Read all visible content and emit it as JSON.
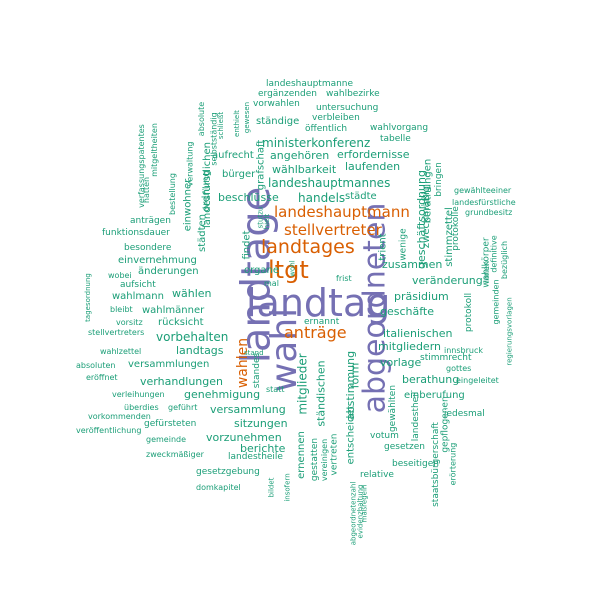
{
  "colors": {
    "teal": "#1b9e77",
    "orange": "#d95f02",
    "purple": "#7570b3"
  },
  "words": [
    {
      "text": "landtag",
      "color": "purple"
    },
    {
      "text": "landtage",
      "color": "purple"
    },
    {
      "text": "abgeordneten",
      "color": "purple"
    },
    {
      "text": "wahl",
      "color": "purple"
    },
    {
      "text": "ltgt",
      "color": "orange"
    },
    {
      "text": "landtages",
      "color": "orange"
    },
    {
      "text": "stellvertreter",
      "color": "orange"
    },
    {
      "text": "landeshauptmann",
      "color": "orange"
    },
    {
      "text": "anträge",
      "color": "orange"
    },
    {
      "text": "wahlen",
      "color": "orange"
    },
    {
      "text": "landeshauptmanne",
      "color": "teal"
    },
    {
      "text": "ergänzenden",
      "color": "teal"
    },
    {
      "text": "wahlbezirke",
      "color": "teal"
    },
    {
      "text": "vorwahlen",
      "color": "teal"
    },
    {
      "text": "untersuchung",
      "color": "teal"
    },
    {
      "text": "verbleiben",
      "color": "teal"
    },
    {
      "text": "ständige",
      "color": "teal"
    },
    {
      "text": "öffentlich",
      "color": "teal"
    },
    {
      "text": "wahlvorgang",
      "color": "teal"
    },
    {
      "text": "tabelle",
      "color": "teal"
    },
    {
      "text": "ministerkonferenz",
      "color": "teal"
    },
    {
      "text": "erfordernisse",
      "color": "teal"
    },
    {
      "text": "aufrecht",
      "color": "teal"
    },
    {
      "text": "angehören",
      "color": "teal"
    },
    {
      "text": "laufenden",
      "color": "teal"
    },
    {
      "text": "wählbarkeit",
      "color": "teal"
    },
    {
      "text": "bürger",
      "color": "teal"
    },
    {
      "text": "landeshauptmannes",
      "color": "teal"
    },
    {
      "text": "beschlüsse",
      "color": "teal"
    },
    {
      "text": "handels",
      "color": "teal"
    },
    {
      "text": "städte",
      "color": "teal"
    },
    {
      "text": "grafschaft",
      "color": "teal"
    },
    {
      "text": "geschäftsordnung",
      "color": "teal"
    },
    {
      "text": "zweckmäßig",
      "color": "teal"
    },
    {
      "text": "berathungen",
      "color": "teal"
    },
    {
      "text": "bringen",
      "color": "teal"
    },
    {
      "text": "stimmzettel",
      "color": "teal"
    },
    {
      "text": "trient",
      "color": "teal"
    },
    {
      "text": "wenige",
      "color": "teal"
    },
    {
      "text": "zusammen",
      "color": "teal"
    },
    {
      "text": "präsidium",
      "color": "teal"
    },
    {
      "text": "geschäfte",
      "color": "teal"
    },
    {
      "text": "veränderung",
      "color": "teal"
    },
    {
      "text": "italienischen",
      "color": "teal"
    },
    {
      "text": "mitgliedern",
      "color": "teal"
    },
    {
      "text": "vorlage",
      "color": "teal"
    },
    {
      "text": "stimmrecht",
      "color": "teal"
    },
    {
      "text": "berathung",
      "color": "teal"
    },
    {
      "text": "einberufung",
      "color": "teal"
    },
    {
      "text": "gewählten",
      "color": "teal"
    },
    {
      "text": "landestheil",
      "color": "teal"
    },
    {
      "text": "staatsbürgerschaft",
      "color": "teal"
    },
    {
      "text": "gepflogenen",
      "color": "teal"
    },
    {
      "text": "votum",
      "color": "teal"
    },
    {
      "text": "gesetzen",
      "color": "teal"
    },
    {
      "text": "beseitigen",
      "color": "teal"
    },
    {
      "text": "relative",
      "color": "teal"
    },
    {
      "text": "jedesmal",
      "color": "teal"
    },
    {
      "text": "erörterung",
      "color": "teal"
    },
    {
      "text": "gewählteeiner",
      "color": "teal"
    },
    {
      "text": "landesfürstliche",
      "color": "teal"
    },
    {
      "text": "grundbesitz",
      "color": "teal"
    },
    {
      "text": "protokolle",
      "color": "teal"
    },
    {
      "text": "protokoll",
      "color": "teal"
    },
    {
      "text": "wahlkörper",
      "color": "teal"
    },
    {
      "text": "innen",
      "color": "teal"
    },
    {
      "text": "bezüglich",
      "color": "teal"
    },
    {
      "text": "definitive",
      "color": "teal"
    },
    {
      "text": "gemeinden",
      "color": "teal"
    },
    {
      "text": "regierungsvorlagen",
      "color": "teal"
    },
    {
      "text": "innsbruck",
      "color": "teal"
    },
    {
      "text": "gottes",
      "color": "teal"
    },
    {
      "text": "eingeleitet",
      "color": "teal"
    },
    {
      "text": "verfassungspatentes",
      "color": "teal"
    },
    {
      "text": "mitgeltheiten",
      "color": "teal"
    },
    {
      "text": "hatten",
      "color": "teal"
    },
    {
      "text": "bestellung",
      "color": "teal"
    },
    {
      "text": "absolute",
      "color": "teal"
    },
    {
      "text": "verwaltung",
      "color": "teal"
    },
    {
      "text": "einwohner",
      "color": "teal"
    },
    {
      "text": "landesfürstlichen",
      "color": "teal"
    },
    {
      "text": "ordnung",
      "color": "teal"
    },
    {
      "text": "städten",
      "color": "teal"
    },
    {
      "text": "selbstständig",
      "color": "teal"
    },
    {
      "text": "schließt",
      "color": "teal"
    },
    {
      "text": "enthielt",
      "color": "teal"
    },
    {
      "text": "gewesen",
      "color": "teal"
    },
    {
      "text": "anträgen",
      "color": "teal"
    },
    {
      "text": "funktionsdauer",
      "color": "teal"
    },
    {
      "text": "besondere",
      "color": "teal"
    },
    {
      "text": "einvernehmung",
      "color": "teal"
    },
    {
      "text": "wobei",
      "color": "teal"
    },
    {
      "text": "änderungen",
      "color": "teal"
    },
    {
      "text": "aufsicht",
      "color": "teal"
    },
    {
      "text": "wahlmann",
      "color": "teal"
    },
    {
      "text": "wählen",
      "color": "teal"
    },
    {
      "text": "tagesordnung",
      "color": "teal"
    },
    {
      "text": "bleibt",
      "color": "teal"
    },
    {
      "text": "wahlmänner",
      "color": "teal"
    },
    {
      "text": "vorsitz",
      "color": "teal"
    },
    {
      "text": "rücksicht",
      "color": "teal"
    },
    {
      "text": "stellvertreters",
      "color": "teal"
    },
    {
      "text": "vorbehalten",
      "color": "teal"
    },
    {
      "text": "landtags",
      "color": "teal"
    },
    {
      "text": "wahlzettel",
      "color": "teal"
    },
    {
      "text": "versammlungen",
      "color": "teal"
    },
    {
      "text": "absoluten",
      "color": "teal"
    },
    {
      "text": "eröffnet",
      "color": "teal"
    },
    {
      "text": "verhandlungen",
      "color": "teal"
    },
    {
      "text": "genehmigung",
      "color": "teal"
    },
    {
      "text": "verleihungen",
      "color": "teal"
    },
    {
      "text": "versammlung",
      "color": "teal"
    },
    {
      "text": "überdies",
      "color": "teal"
    },
    {
      "text": "geführt",
      "color": "teal"
    },
    {
      "text": "vorkommenden",
      "color": "teal"
    },
    {
      "text": "gefürsteten",
      "color": "teal"
    },
    {
      "text": "sitzungen",
      "color": "teal"
    },
    {
      "text": "veröffentlichung",
      "color": "teal"
    },
    {
      "text": "gemeinde",
      "color": "teal"
    },
    {
      "text": "vorzunehmen",
      "color": "teal"
    },
    {
      "text": "zweckmäßiger",
      "color": "teal"
    },
    {
      "text": "landestheile",
      "color": "teal"
    },
    {
      "text": "berichte",
      "color": "teal"
    },
    {
      "text": "gesetzgebung",
      "color": "teal"
    },
    {
      "text": "domkapitel",
      "color": "teal"
    },
    {
      "text": "bildet",
      "color": "teal"
    },
    {
      "text": "insofern",
      "color": "teal"
    },
    {
      "text": "findet",
      "color": "teal"
    },
    {
      "text": "organe",
      "color": "teal"
    },
    {
      "text": "mal",
      "color": "teal"
    },
    {
      "text": "stutzu",
      "color": "teal"
    },
    {
      "text": "hielt",
      "color": "teal"
    },
    {
      "text": "wohl",
      "color": "teal"
    },
    {
      "text": "frist",
      "color": "teal"
    },
    {
      "text": "ernannt",
      "color": "teal"
    },
    {
      "text": "stand",
      "color": "teal"
    },
    {
      "text": "standes",
      "color": "teal"
    },
    {
      "text": "statt",
      "color": "teal"
    },
    {
      "text": "mitglieder",
      "color": "teal"
    },
    {
      "text": "ständischen",
      "color": "teal"
    },
    {
      "text": "ernennen",
      "color": "teal"
    },
    {
      "text": "gestatten",
      "color": "teal"
    },
    {
      "text": "vereinigen",
      "color": "teal"
    },
    {
      "text": "vertreten",
      "color": "teal"
    },
    {
      "text": "abstimmung",
      "color": "teal"
    },
    {
      "text": "entscheidet",
      "color": "teal"
    },
    {
      "text": "form",
      "color": "teal"
    },
    {
      "text": "abgeordnetenzahl",
      "color": "teal"
    },
    {
      "text": "evidenzhaltung",
      "color": "teal"
    },
    {
      "text": "maßregeln",
      "color": "teal"
    }
  ]
}
